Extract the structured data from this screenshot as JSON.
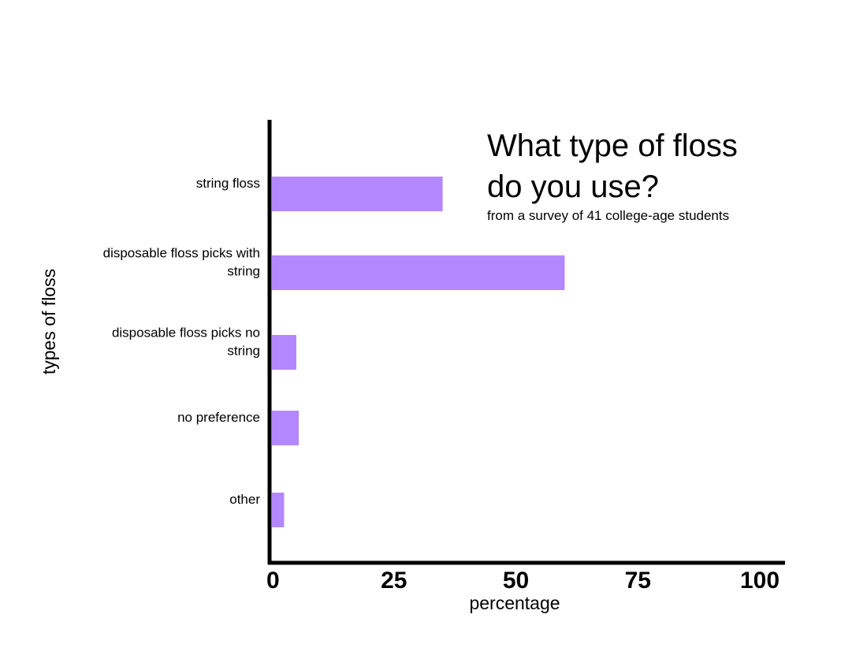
{
  "chart_data": {
    "type": "bar",
    "orientation": "horizontal",
    "title_lines": [
      "What type of floss",
      "do you use?"
    ],
    "subtitle": "from a survey of 41 college-age students",
    "xlabel": "percentage",
    "ylabel": "types of floss",
    "categories": [
      [
        "string floss"
      ],
      [
        "disposable floss picks with",
        "string"
      ],
      [
        "disposable floss picks no",
        "string"
      ],
      [
        "no preference"
      ],
      [
        "other"
      ]
    ],
    "values": [
      35,
      60,
      5,
      5.5,
      2.5
    ],
    "xlim": [
      0,
      100
    ],
    "xticks": [
      "0",
      "25",
      "50",
      "75",
      "100"
    ],
    "grid": false,
    "bar_color": "#b388ff",
    "axis_color": "#000000"
  }
}
